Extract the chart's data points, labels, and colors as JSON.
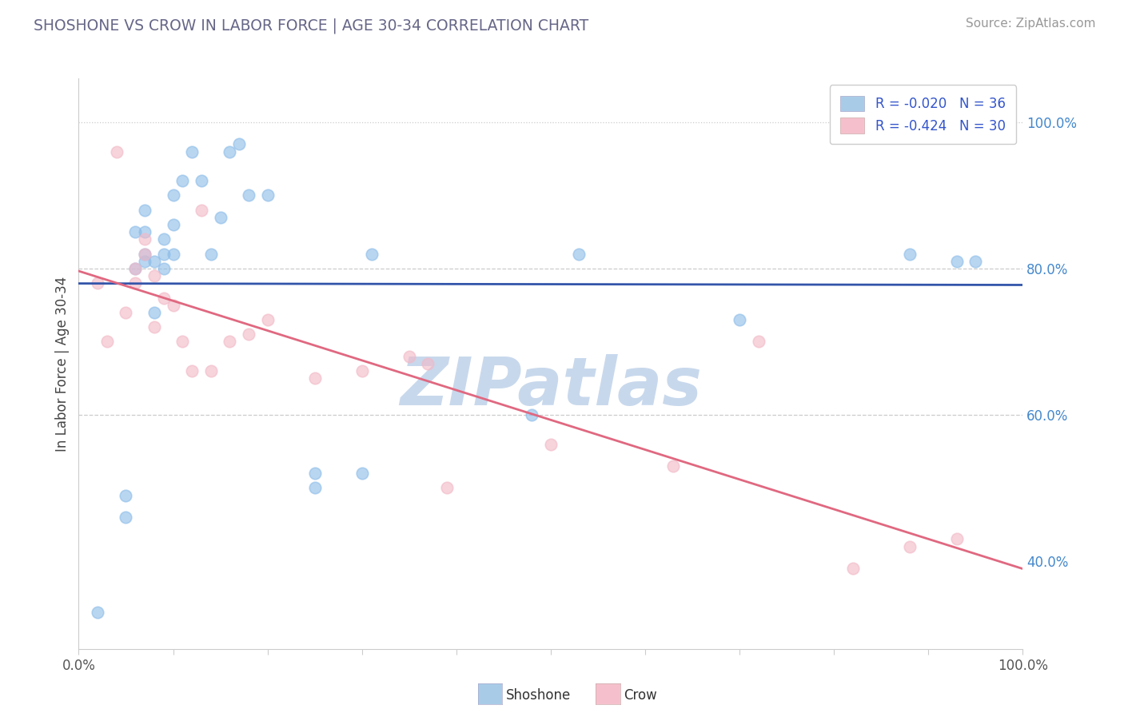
{
  "title": "SHOSHONE VS CROW IN LABOR FORCE | AGE 30-34 CORRELATION CHART",
  "source_text": "Source: ZipAtlas.com",
  "ylabel": "In Labor Force | Age 30-34",
  "ytick_labels_right": [
    "40.0%",
    "60.0%",
    "80.0%",
    "100.0%"
  ],
  "ytick_values": [
    0.4,
    0.6,
    0.8,
    1.0
  ],
  "xtick_values": [
    0.0,
    0.1,
    0.2,
    0.3,
    0.4,
    0.5,
    0.6,
    0.7,
    0.8,
    0.9,
    1.0
  ],
  "xtick_labels": [
    "0.0%",
    "",
    "",
    "",
    "",
    "",
    "",
    "",
    "",
    "",
    "100.0%"
  ],
  "xlim": [
    0.0,
    1.0
  ],
  "ylim": [
    0.28,
    1.06
  ],
  "shoshone_color": "#8bbce8",
  "crow_color": "#f2b8c6",
  "shoshone_line_color": "#3355aa",
  "crow_line_color": "#e06880",
  "legend_patch_shoshone": "#a8cce8",
  "legend_patch_crow": "#f5c0cc",
  "title_color": "#666688",
  "source_color": "#999999",
  "ylabel_color": "#444444",
  "ytick_color": "#4488cc",
  "xtick_color": "#555555",
  "grid_color": "#cccccc",
  "legend_text_color_label": "#333333",
  "legend_text_color_value": "#3355cc",
  "background_color": "#ffffff",
  "watermark_text": "ZIPatlas",
  "watermark_color": "#c8d8ec",
  "shoshone_x": [
    0.02,
    0.05,
    0.05,
    0.06,
    0.06,
    0.07,
    0.07,
    0.07,
    0.07,
    0.08,
    0.08,
    0.09,
    0.09,
    0.09,
    0.1,
    0.1,
    0.1,
    0.11,
    0.12,
    0.13,
    0.14,
    0.15,
    0.16,
    0.17,
    0.18,
    0.2,
    0.25,
    0.25,
    0.3,
    0.31,
    0.48,
    0.53,
    0.7,
    0.88,
    0.93,
    0.95
  ],
  "shoshone_y": [
    0.33,
    0.46,
    0.49,
    0.8,
    0.85,
    0.81,
    0.82,
    0.85,
    0.88,
    0.74,
    0.81,
    0.8,
    0.82,
    0.84,
    0.82,
    0.86,
    0.9,
    0.92,
    0.96,
    0.92,
    0.82,
    0.87,
    0.96,
    0.97,
    0.9,
    0.9,
    0.5,
    0.52,
    0.52,
    0.82,
    0.6,
    0.82,
    0.73,
    0.82,
    0.81,
    0.81
  ],
  "crow_x": [
    0.02,
    0.03,
    0.04,
    0.05,
    0.06,
    0.06,
    0.07,
    0.07,
    0.08,
    0.08,
    0.09,
    0.1,
    0.11,
    0.12,
    0.13,
    0.14,
    0.16,
    0.18,
    0.2,
    0.25,
    0.3,
    0.35,
    0.37,
    0.39,
    0.5,
    0.63,
    0.72,
    0.82,
    0.88,
    0.93
  ],
  "crow_y": [
    0.78,
    0.7,
    0.96,
    0.74,
    0.78,
    0.8,
    0.82,
    0.84,
    0.72,
    0.79,
    0.76,
    0.75,
    0.7,
    0.66,
    0.88,
    0.66,
    0.7,
    0.71,
    0.73,
    0.65,
    0.66,
    0.68,
    0.67,
    0.5,
    0.56,
    0.53,
    0.7,
    0.39,
    0.42,
    0.43
  ],
  "legend_r_shoshone": "R = -0.020",
  "legend_n_shoshone": "N = 36",
  "legend_r_crow": "R = -0.424",
  "legend_n_crow": "N = 30"
}
